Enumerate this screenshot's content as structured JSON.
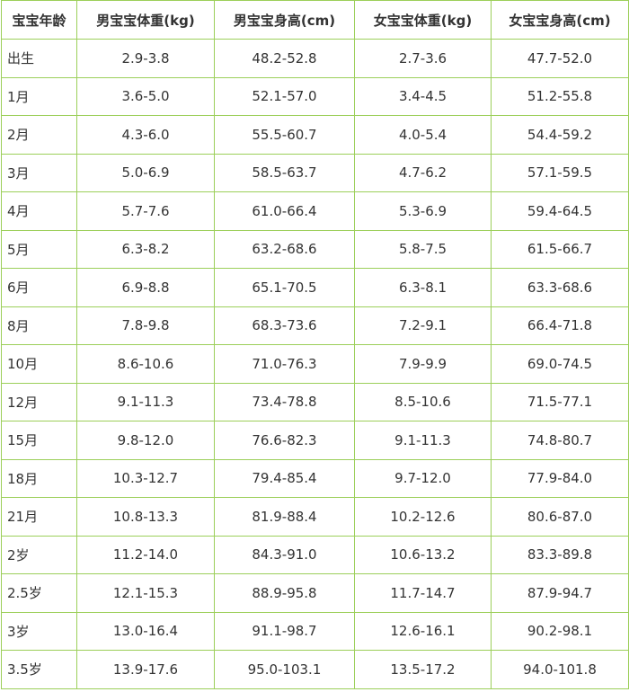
{
  "table": {
    "headers": [
      "宝宝年龄",
      "男宝宝体重(kg)",
      "男宝宝身高(cm)",
      "女宝宝体重(kg)",
      "女宝宝身高(cm)"
    ],
    "rows": [
      [
        "出生",
        "2.9-3.8",
        "48.2-52.8",
        "2.7-3.6",
        "47.7-52.0"
      ],
      [
        "1月",
        "3.6-5.0",
        "52.1-57.0",
        "3.4-4.5",
        "51.2-55.8"
      ],
      [
        "2月",
        "4.3-6.0",
        "55.5-60.7",
        "4.0-5.4",
        "54.4-59.2"
      ],
      [
        "3月",
        "5.0-6.9",
        "58.5-63.7",
        "4.7-6.2",
        "57.1-59.5"
      ],
      [
        "4月",
        "5.7-7.6",
        "61.0-66.4",
        "5.3-6.9",
        "59.4-64.5"
      ],
      [
        "5月",
        "6.3-8.2",
        "63.2-68.6",
        "5.8-7.5",
        "61.5-66.7"
      ],
      [
        "6月",
        "6.9-8.8",
        "65.1-70.5",
        "6.3-8.1",
        "63.3-68.6"
      ],
      [
        "8月",
        "7.8-9.8",
        "68.3-73.6",
        "7.2-9.1",
        "66.4-71.8"
      ],
      [
        "10月",
        "8.6-10.6",
        "71.0-76.3",
        "7.9-9.9",
        "69.0-74.5"
      ],
      [
        "12月",
        "9.1-11.3",
        "73.4-78.8",
        "8.5-10.6",
        "71.5-77.1"
      ],
      [
        "15月",
        "9.8-12.0",
        "76.6-82.3",
        "9.1-11.3",
        "74.8-80.7"
      ],
      [
        "18月",
        "10.3-12.7",
        "79.4-85.4",
        "9.7-12.0",
        "77.9-84.0"
      ],
      [
        "21月",
        "10.8-13.3",
        "81.9-88.4",
        "10.2-12.6",
        "80.6-87.0"
      ],
      [
        "2岁",
        "11.2-14.0",
        "84.3-91.0",
        "10.6-13.2",
        "83.3-89.8"
      ],
      [
        "2.5岁",
        "12.1-15.3",
        "88.9-95.8",
        "11.7-14.7",
        "87.9-94.7"
      ],
      [
        "3岁",
        "13.0-16.4",
        "91.1-98.7",
        "12.6-16.1",
        "90.2-98.1"
      ],
      [
        "3.5岁",
        "13.9-17.6",
        "95.0-103.1",
        "13.5-17.2",
        "94.0-101.8"
      ]
    ]
  },
  "colors": {
    "border": "#9ccf5a",
    "text": "#333333",
    "background": "#ffffff"
  }
}
